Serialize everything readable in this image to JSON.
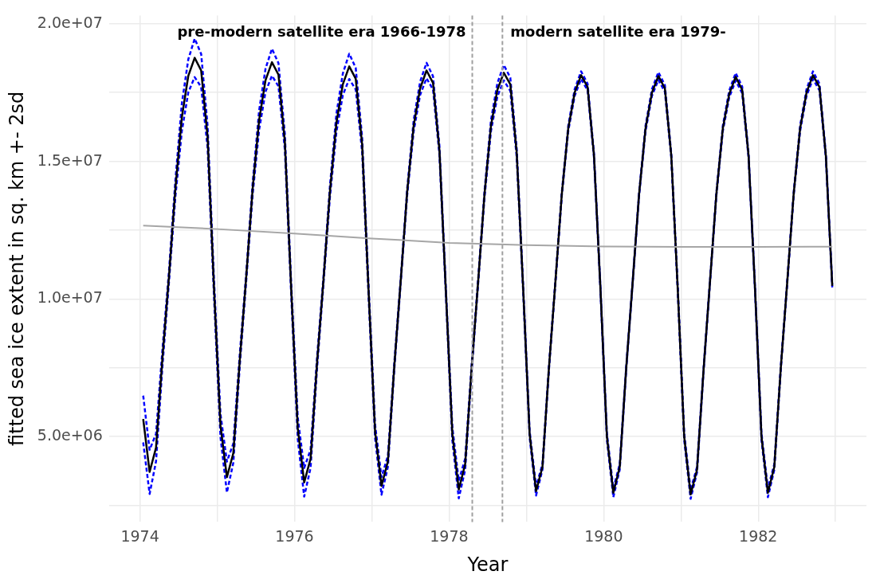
{
  "chart_data": {
    "type": "line",
    "xlabel": "Year",
    "ylabel": "fitted sea ice extent in sq. km +- 2sd",
    "x": [
      1974.042,
      1974.125,
      1974.208,
      1974.292,
      1974.375,
      1974.458,
      1974.542,
      1974.625,
      1974.708,
      1974.792,
      1974.875,
      1974.958,
      1975.042,
      1975.125,
      1975.208,
      1975.292,
      1975.375,
      1975.458,
      1975.542,
      1975.625,
      1975.708,
      1975.792,
      1975.875,
      1975.958,
      1976.042,
      1976.125,
      1976.208,
      1976.292,
      1976.375,
      1976.458,
      1976.542,
      1976.625,
      1976.708,
      1976.792,
      1976.875,
      1976.958,
      1977.042,
      1977.125,
      1977.208,
      1977.292,
      1977.375,
      1977.458,
      1977.542,
      1977.625,
      1977.708,
      1977.792,
      1977.875,
      1977.958,
      1978.042,
      1978.125,
      1978.208,
      1978.292,
      1978.375,
      1978.458,
      1978.542,
      1978.625,
      1978.708,
      1978.792,
      1978.875,
      1978.958,
      1979.042,
      1979.125,
      1979.208,
      1979.292,
      1979.375,
      1979.458,
      1979.542,
      1979.625,
      1979.708,
      1979.792,
      1979.875,
      1979.958,
      1980.042,
      1980.125,
      1980.208,
      1980.292,
      1980.375,
      1980.458,
      1980.542,
      1980.625,
      1980.708,
      1980.792,
      1980.875,
      1980.958,
      1981.042,
      1981.125,
      1981.208,
      1981.292,
      1981.375,
      1981.458,
      1981.542,
      1981.625,
      1981.708,
      1981.792,
      1981.875,
      1981.958,
      1982.042,
      1982.125,
      1982.208,
      1982.292,
      1982.375,
      1982.458,
      1982.542,
      1982.625,
      1982.708,
      1982.792,
      1982.875,
      1982.958
    ],
    "series": [
      {
        "color": "#0000ff",
        "line_style": "dashed",
        "values": [
          6490000.0,
          4520000.0,
          5100000.0,
          8200000.0,
          11000000.0,
          14300000.0,
          17100000.0,
          18700000.0,
          19460000.0,
          18900000.0,
          16300000.0,
          10700000.0,
          5820000.0,
          4090000.0,
          4750000.0,
          8010000.0,
          10940000.0,
          14210000.0,
          16850000.0,
          18370000.0,
          19090000.0,
          18570000.0,
          15980000.0,
          10510000.0,
          5690000.0,
          3860000.0,
          4530000.0,
          7900000.0,
          10830000.0,
          14100000.0,
          16730000.0,
          18190000.0,
          18910000.0,
          18390000.0,
          15860000.0,
          10500000.0,
          5440000.0,
          3530000.0,
          4300000.0,
          7720000.0,
          10780000.0,
          14020000.0,
          16500000.0,
          17890000.0,
          18580000.0,
          18090000.0,
          15560000.0,
          10420000.0,
          5340000.0,
          3400000.0,
          4200000.0,
          7620000.0,
          10680000.0,
          13920000.0,
          16500000.0,
          17840000.0,
          18500000.0,
          18040000.0,
          15460000.0,
          10520000.0,
          5220000.0,
          3180000.0,
          4000000.0,
          7560000.0,
          10640000.0,
          13860000.0,
          16300000.0,
          17620000.0,
          18270000.0,
          17820000.0,
          15280000.0,
          10460000.0,
          5120000.0,
          3120000.0,
          4000000.0,
          7560000.0,
          10640000.0,
          13860000.0,
          16300000.0,
          17620000.0,
          18240000.0,
          17770000.0,
          15280000.0,
          10460000.0,
          5120000.0,
          3060000.0,
          3900000.0,
          7460000.0,
          10640000.0,
          13860000.0,
          16300000.0,
          17570000.0,
          18210000.0,
          17720000.0,
          15280000.0,
          10460000.0,
          5120000.0,
          3120000.0,
          4000000.0,
          7560000.0,
          10640000.0,
          13860000.0,
          16300000.0,
          17620000.0,
          18270000.0,
          17820000.0,
          15280000.0,
          10540000.0
        ]
      },
      {
        "color": "#0000ff",
        "line_style": "dashed",
        "values": [
          4790000.0,
          2920000.0,
          4100000.0,
          7600000.0,
          10600000.0,
          13700000.0,
          16100000.0,
          17500000.0,
          18060000.0,
          17700000.0,
          15500000.0,
          10100000.0,
          4980000.0,
          2970000.0,
          4050000.0,
          7590000.0,
          10660000.0,
          13790000.0,
          16150000.0,
          17530000.0,
          18110000.0,
          17730000.0,
          15420000.0,
          10090000.0,
          4910000.0,
          2820000.0,
          3870000.0,
          7500000.0,
          10570000.0,
          13700000.0,
          16070000.0,
          17410000.0,
          17990000.0,
          17610000.0,
          15340000.0,
          10100000.0,
          4960000.0,
          2890000.0,
          3900000.0,
          7480000.0,
          10620000.0,
          13780000.0,
          16100000.0,
          17410000.0,
          18020000.0,
          17610000.0,
          15240000.0,
          10180000.0,
          4860000.0,
          2760000.0,
          3800000.0,
          7380000.0,
          10520000.0,
          13680000.0,
          16100000.0,
          17360000.0,
          17940000.0,
          17560000.0,
          15140000.0,
          10280000.0,
          4980000.0,
          2860000.0,
          3800000.0,
          7440000.0,
          10560000.0,
          13740000.0,
          16100000.0,
          17380000.0,
          17990000.0,
          17580000.0,
          15120000.0,
          10340000.0,
          4880000.0,
          2800000.0,
          3800000.0,
          7440000.0,
          10560000.0,
          13740000.0,
          16100000.0,
          17380000.0,
          17960000.0,
          17530000.0,
          15120000.0,
          10340000.0,
          4880000.0,
          2740000.0,
          3700000.0,
          7340000.0,
          10560000.0,
          13740000.0,
          16100000.0,
          17330000.0,
          17930000.0,
          17480000.0,
          15120000.0,
          10340000.0,
          4880000.0,
          2800000.0,
          3800000.0,
          7440000.0,
          10560000.0,
          13740000.0,
          16100000.0,
          17380000.0,
          17990000.0,
          17580000.0,
          15120000.0,
          10420000.0
        ]
      },
      {
        "color": "#000000",
        "line_style": "solid",
        "values": [
          5640000.0,
          3720000.0,
          4600000.0,
          7900000.0,
          10800000.0,
          14000000.0,
          16600000.0,
          18100000.0,
          18760000.0,
          18300000.0,
          15900000.0,
          10400000.0,
          5400000.0,
          3530000.0,
          4400000.0,
          7800000.0,
          10800000.0,
          14000000.0,
          16500000.0,
          17950000.0,
          18600000.0,
          18150000.0,
          15700000.0,
          10300000.0,
          5300000.0,
          3340000.0,
          4200000.0,
          7700000.0,
          10700000.0,
          13900000.0,
          16400000.0,
          17800000.0,
          18450000.0,
          18000000.0,
          15600000.0,
          10300000.0,
          5200000.0,
          3210000.0,
          4100000.0,
          7600000.0,
          10700000.0,
          13900000.0,
          16300000.0,
          17650000.0,
          18300000.0,
          17850000.0,
          15400000.0,
          10300000.0,
          5100000.0,
          3080000.0,
          4000000.0,
          7500000.0,
          10600000.0,
          13800000.0,
          16300000.0,
          17600000.0,
          18220000.0,
          17800000.0,
          15300000.0,
          10400000.0,
          5100000.0,
          3020000.0,
          3900000.0,
          7500000.0,
          10600000.0,
          13800000.0,
          16200000.0,
          17500000.0,
          18130000.0,
          17700000.0,
          15200000.0,
          10400000.0,
          5000000.0,
          2960000.0,
          3900000.0,
          7500000.0,
          10600000.0,
          13800000.0,
          16200000.0,
          17500000.0,
          18100000.0,
          17650000.0,
          15200000.0,
          10400000.0,
          5000000.0,
          2900000.0,
          3800000.0,
          7400000.0,
          10600000.0,
          13800000.0,
          16200000.0,
          17450000.0,
          18070000.0,
          17600000.0,
          15200000.0,
          10400000.0,
          5000000.0,
          2960000.0,
          3900000.0,
          7500000.0,
          10600000.0,
          13800000.0,
          16200000.0,
          17500000.0,
          18130000.0,
          17700000.0,
          15200000.0,
          10480000.0
        ]
      },
      {
        "color": "#a6a6a6",
        "line_style": "solid",
        "x": [
          1974.042,
          1975,
          1976,
          1977,
          1978,
          1979,
          1980,
          1981,
          1982,
          1982.958
        ],
        "values": [
          12670000.0,
          12540000.0,
          12380000.0,
          12200000.0,
          12040000.0,
          11960000.0,
          11910000.0,
          11890000.0,
          11890000.0,
          11900000.0
        ]
      }
    ],
    "xlim": [
      1973.6,
      1983.4
    ],
    "xticks": [
      1974,
      {
        "value": 1975,
        "label": null
      },
      1976,
      {
        "value": 1977,
        "label": null
      },
      1978,
      {
        "value": 1979,
        "label": null
      },
      1980,
      {
        "value": 1981,
        "label": null
      },
      1982,
      {
        "value": 1983,
        "label": null
      }
    ],
    "ylim": [
      1900000.0,
      20300000.0
    ],
    "yticks": [
      {
        "value": 2500000.0,
        "label": null
      },
      {
        "value": 5000000.0,
        "label": "5.0e+06"
      },
      {
        "value": 7500000.0,
        "label": null
      },
      {
        "value": 10000000.0,
        "label": "1.0e+07"
      },
      {
        "value": 12500000.0,
        "label": null
      },
      {
        "value": 15000000.0,
        "label": "1.5e+07"
      },
      {
        "value": 17500000.0,
        "label": null
      },
      {
        "value": 20000000.0,
        "label": "2.0e+07"
      }
    ],
    "ref_lines": [
      {
        "axis": "x",
        "value": 1978.3,
        "label": "pre-modern satellite era 1966-1978",
        "color": "#a0a0a0",
        "line_style": "dashed"
      },
      {
        "axis": "x",
        "value": 1978.69,
        "label": "modern satellite era 1979-",
        "color": "#a0a0a0",
        "line_style": "dashed"
      }
    ],
    "grid": true,
    "legend": false,
    "marker": "none"
  }
}
